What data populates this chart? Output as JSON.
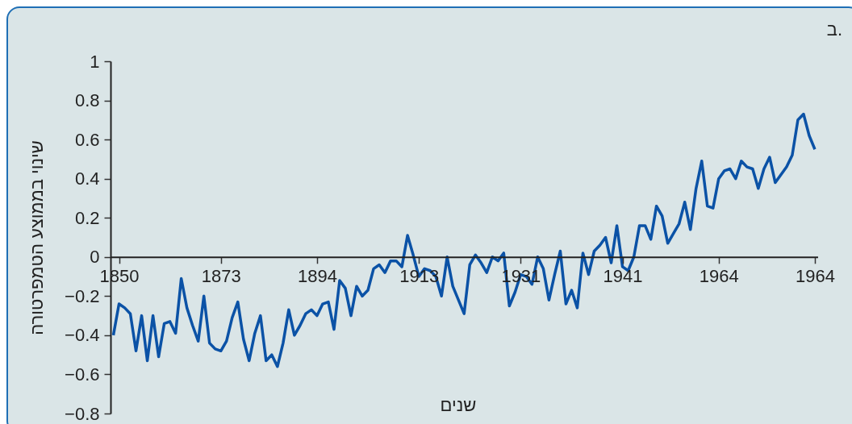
{
  "chart_data": {
    "type": "line",
    "xlabel": "שנים",
    "ylabel": "שינוי בממוצע הטמפרטורה",
    "annotations": [
      "ב."
    ],
    "categories": [
      null,
      "1850",
      null,
      null,
      null,
      null,
      null,
      null,
      null,
      null,
      null,
      null,
      null,
      null,
      null,
      null,
      null,
      null,
      null,
      "1873",
      null,
      null,
      null,
      null,
      null,
      null,
      null,
      null,
      null,
      null,
      null,
      null,
      null,
      null,
      null,
      null,
      "1894",
      null,
      null,
      null,
      null,
      null,
      null,
      null,
      null,
      null,
      null,
      null,
      null,
      null,
      null,
      null,
      null,
      null,
      "1913",
      null,
      null,
      null,
      null,
      null,
      null,
      null,
      null,
      null,
      null,
      null,
      null,
      null,
      null,
      null,
      null,
      null,
      "1931",
      null,
      null,
      null,
      null,
      null,
      null,
      null,
      null,
      null,
      null,
      null,
      null,
      null,
      null,
      null,
      null,
      null,
      "1941",
      null,
      null,
      null,
      null,
      null,
      null,
      null,
      null,
      null,
      null,
      null,
      null,
      null,
      null,
      null,
      null,
      "1964",
      null,
      null,
      null,
      null,
      null,
      null,
      null,
      null,
      null,
      null,
      null,
      null,
      null,
      null,
      null,
      null,
      "1964"
    ],
    "series": [
      {
        "color": "#0b52a6",
        "values": [
          -0.4,
          -0.24,
          -0.26,
          -0.29,
          -0.48,
          -0.3,
          -0.53,
          -0.3,
          -0.51,
          -0.34,
          -0.33,
          -0.39,
          -0.11,
          -0.26,
          -0.35,
          -0.43,
          -0.2,
          -0.44,
          -0.47,
          -0.48,
          -0.43,
          -0.31,
          -0.23,
          -0.42,
          -0.53,
          -0.39,
          -0.3,
          -0.53,
          -0.5,
          -0.56,
          -0.44,
          -0.27,
          -0.4,
          -0.35,
          -0.29,
          -0.27,
          -0.3,
          -0.24,
          -0.23,
          -0.37,
          -0.12,
          -0.16,
          -0.3,
          -0.15,
          -0.2,
          -0.17,
          -0.06,
          -0.04,
          -0.08,
          -0.02,
          -0.02,
          -0.05,
          0.11,
          0.01,
          -0.1,
          -0.06,
          -0.07,
          -0.1,
          -0.2,
          0,
          -0.15,
          -0.22,
          -0.29,
          -0.04,
          0.01,
          -0.03,
          -0.08,
          0,
          -0.02,
          0.02,
          -0.25,
          -0.18,
          -0.09,
          -0.1,
          -0.14,
          0,
          -0.06,
          -0.22,
          -0.09,
          0.03,
          -0.24,
          -0.17,
          -0.26,
          0.02,
          -0.09,
          0.03,
          0.06,
          0.1,
          -0.03,
          0.16,
          -0.05,
          -0.07,
          0,
          0.16,
          0.16,
          0.09,
          0.26,
          0.21,
          0.07,
          0.12,
          0.17,
          0.28,
          0.14,
          0.35,
          0.49,
          0.26,
          0.25,
          0.4,
          0.44,
          0.45,
          0.4,
          0.49,
          0.46,
          0.45,
          0.35,
          0.45,
          0.51,
          0.38,
          0.42,
          0.46,
          0.52,
          0.7,
          0.73,
          0.62,
          0.55
        ]
      }
    ],
    "line_style": "solid",
    "ylim": [
      -0.8,
      1
    ],
    "yticks": [
      -0.8,
      -0.6,
      -0.4,
      -0.2,
      0,
      0.2,
      0.4,
      0.6,
      0.8,
      1
    ]
  }
}
